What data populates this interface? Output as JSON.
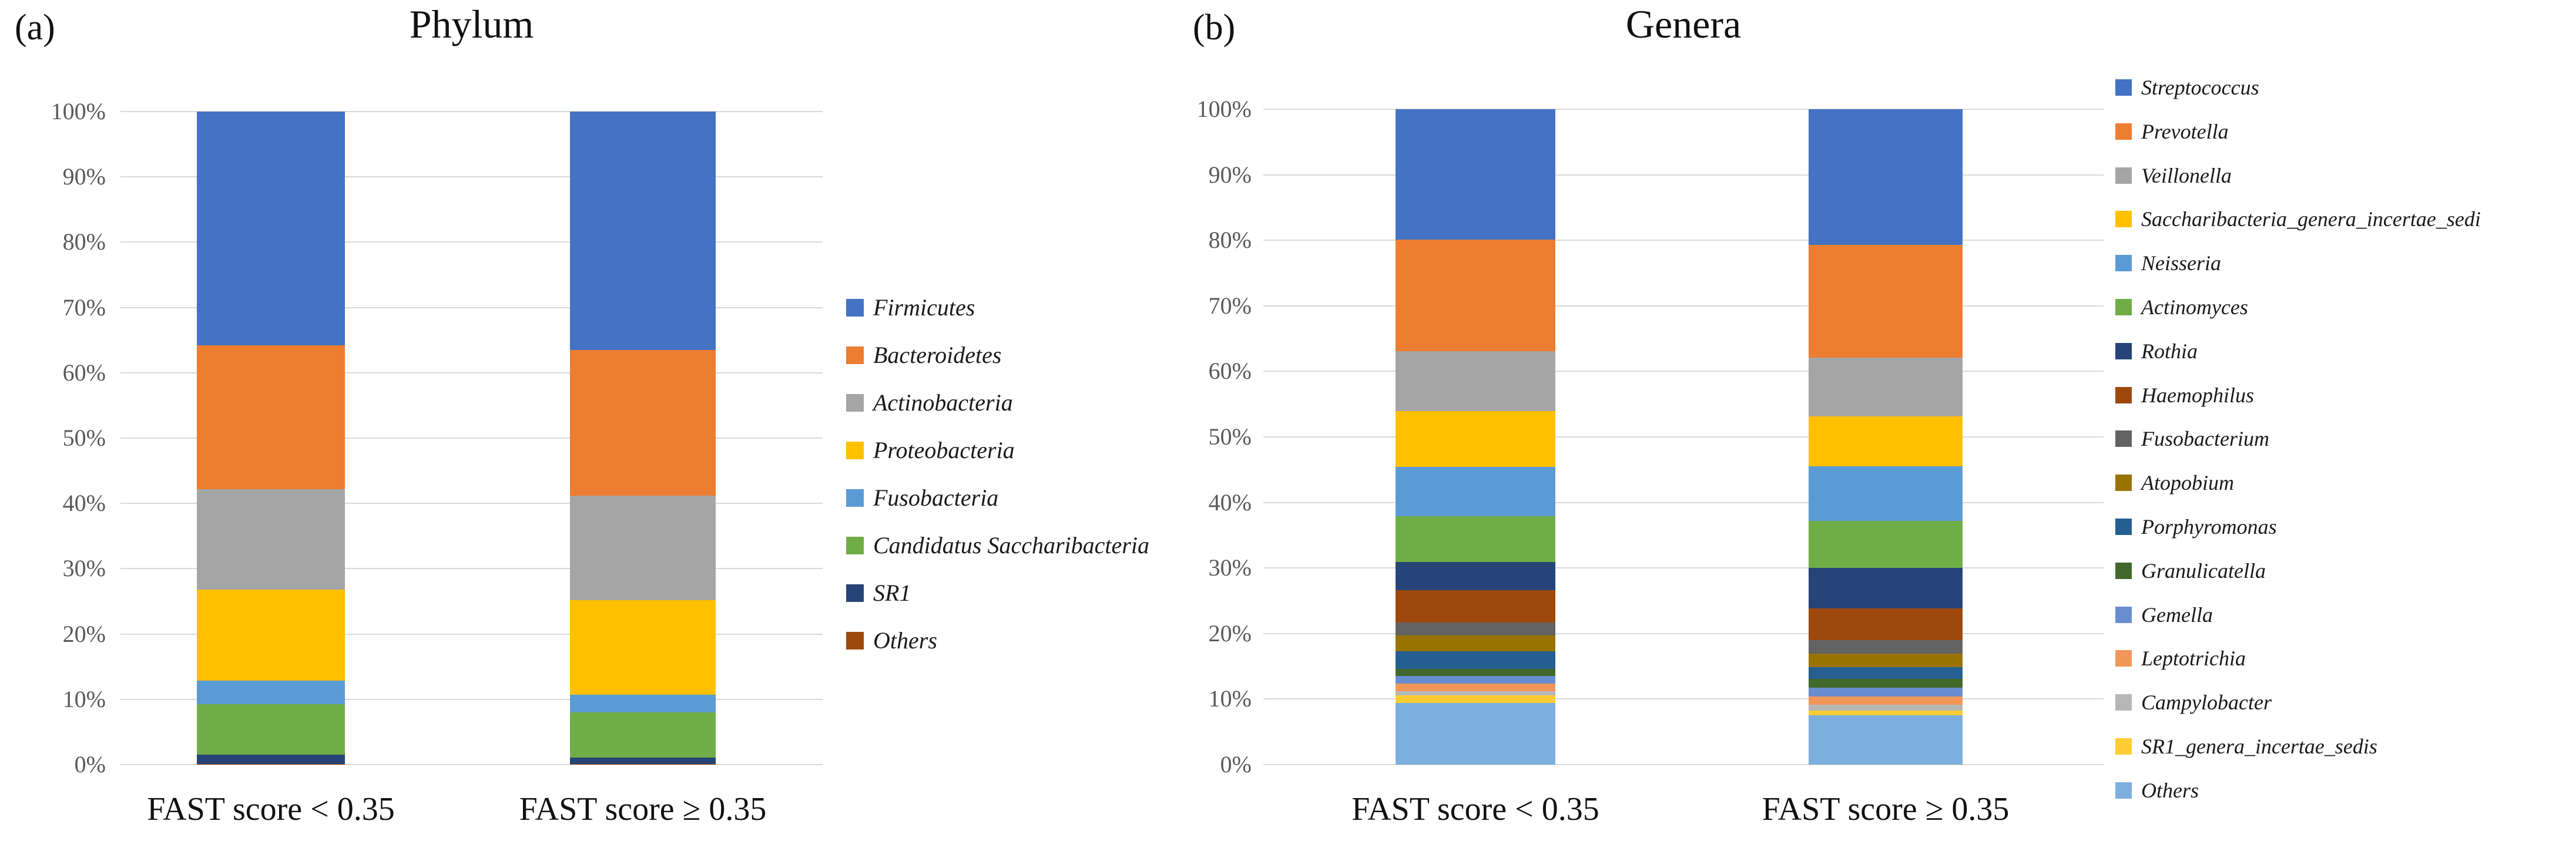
{
  "y_axis": {
    "tick_labels": [
      "0%",
      "10%",
      "20%",
      "30%",
      "40%",
      "50%",
      "60%",
      "70%",
      "80%",
      "90%",
      "100%"
    ]
  },
  "colors": {
    "gridline": "#d9d9d9",
    "tick_text": "#595959"
  },
  "chart_data": [
    {
      "type": "bar",
      "stacked": true,
      "percent_stacked": true,
      "panel_label": "(a)",
      "title": "Phylum",
      "categories": [
        "FAST score < 0.35",
        "FAST score ≥ 0.35"
      ],
      "xlabel": "",
      "ylabel": "",
      "ylim": [
        0,
        100
      ],
      "grid": true,
      "legend_position": "right",
      "stack_note": "first series drawn at top of bar, last series at bottom",
      "y_tick_labels": [
        "0%",
        "10%",
        "20%",
        "30%",
        "40%",
        "50%",
        "60%",
        "70%",
        "80%",
        "90%",
        "100%"
      ],
      "series": [
        {
          "name": "Firmicutes",
          "color": "#4472C4",
          "values": [
            35.8,
            36.5
          ]
        },
        {
          "name": "Bacteroidetes",
          "color": "#ED7D31",
          "values": [
            22.0,
            22.3
          ]
        },
        {
          "name": "Actinobacteria",
          "color": "#A5A5A5",
          "values": [
            15.4,
            16.0
          ]
        },
        {
          "name": "Proteobacteria",
          "color": "#FFC000",
          "values": [
            13.9,
            14.5
          ]
        },
        {
          "name": "Fusobacteria",
          "color": "#5B9BD5",
          "values": [
            3.6,
            2.7
          ]
        },
        {
          "name": "Candidatus Saccharibacteria",
          "color": "#70AD47",
          "values": [
            7.8,
            6.9
          ]
        },
        {
          "name": "SR1",
          "color": "#264478",
          "values": [
            1.4,
            1.0
          ]
        },
        {
          "name": "Others",
          "color": "#9E480E",
          "values": [
            0.1,
            0.1
          ]
        }
      ]
    },
    {
      "type": "bar",
      "stacked": true,
      "percent_stacked": true,
      "panel_label": "(b)",
      "title": "Genera",
      "categories": [
        "FAST score < 0.35",
        "FAST score ≥ 0.35"
      ],
      "xlabel": "",
      "ylabel": "",
      "ylim": [
        0,
        100
      ],
      "grid": true,
      "legend_position": "right",
      "stack_note": "first series drawn at top of bar, last series at bottom",
      "y_tick_labels": [
        "0%",
        "10%",
        "20%",
        "30%",
        "40%",
        "50%",
        "60%",
        "70%",
        "80%",
        "90%",
        "100%"
      ],
      "series": [
        {
          "name": "Streptococcus",
          "color": "#4472C4",
          "values": [
            19.9,
            20.7
          ]
        },
        {
          "name": "Prevotella",
          "color": "#ED7D31",
          "values": [
            17.0,
            17.2
          ]
        },
        {
          "name": "Veillonella",
          "color": "#A5A5A5",
          "values": [
            9.2,
            9.0
          ]
        },
        {
          "name": "Saccharibacteria_genera_incertae_sedi",
          "color": "#FFC000",
          "values": [
            8.5,
            7.6
          ]
        },
        {
          "name": "Neisseria",
          "color": "#5B9BD5",
          "values": [
            7.5,
            8.3
          ]
        },
        {
          "name": "Actinomyces",
          "color": "#70AD47",
          "values": [
            7.0,
            7.2
          ]
        },
        {
          "name": "Rothia",
          "color": "#264478",
          "values": [
            4.3,
            6.2
          ]
        },
        {
          "name": "Haemophilus",
          "color": "#9E480E",
          "values": [
            4.9,
            4.8
          ]
        },
        {
          "name": "Fusobacterium",
          "color": "#636363",
          "values": [
            2.0,
            2.1
          ]
        },
        {
          "name": "Atopobium",
          "color": "#997300",
          "values": [
            2.4,
            2.0
          ]
        },
        {
          "name": "Porphyromonas",
          "color": "#255E91",
          "values": [
            2.7,
            1.8
          ]
        },
        {
          "name": "Granulicatella",
          "color": "#43682B",
          "values": [
            1.1,
            1.4
          ]
        },
        {
          "name": "Gemella",
          "color": "#698ED0",
          "values": [
            1.1,
            1.3
          ]
        },
        {
          "name": "Leptotrichia",
          "color": "#F1975A",
          "values": [
            1.2,
            1.3
          ]
        },
        {
          "name": "Campylobacter",
          "color": "#B7B7B7",
          "values": [
            0.6,
            0.9
          ]
        },
        {
          "name": "SR1_genera_incertae_sedis",
          "color": "#FFCD33",
          "values": [
            1.2,
            0.7
          ]
        },
        {
          "name": "Others",
          "color": "#7CAFDD",
          "values": [
            9.4,
            7.5
          ]
        }
      ]
    }
  ]
}
